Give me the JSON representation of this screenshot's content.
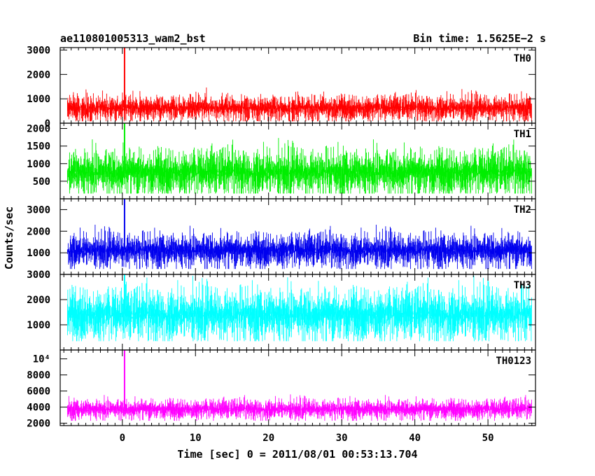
{
  "title_left": "ae110801005313_wam2_bst",
  "title_right": "Bin time: 1.5625E−2 s",
  "xlabel": "Time [sec] 0 = 2011/08/01 00:53:13.704",
  "ylabel": "Counts/sec",
  "chart_data": {
    "type": "line",
    "xlim": [
      -8.5,
      56.5
    ],
    "x_ticks": [
      0,
      10,
      20,
      30,
      40,
      50
    ],
    "x_start": -7.5,
    "x_end": 56.0,
    "bin_time": 0.015625,
    "series": [
      {
        "name": "TH0",
        "color": "#ff0000",
        "ylim": [
          0,
          3100
        ],
        "y_ticks": [
          0,
          1000,
          2000,
          3000
        ],
        "baseline": 650,
        "noise": 260,
        "spike_x": 0.3,
        "spike_y": 3100,
        "lower_floor": 80
      },
      {
        "name": "TH1",
        "color": "#00ee00",
        "ylim": [
          0,
          2150
        ],
        "y_ticks": [
          500,
          1000,
          1500,
          2000
        ],
        "baseline": 780,
        "noise": 330,
        "spike_x": 0.3,
        "spike_y": 2150,
        "lower_floor": 150
      },
      {
        "name": "TH2",
        "color": "#0000ee",
        "ylim": [
          0,
          3500
        ],
        "y_ticks": [
          1000,
          2000,
          3000
        ],
        "baseline": 1150,
        "noise": 400,
        "spike_x": 0.3,
        "spike_y": 3500,
        "lower_floor": 250
      },
      {
        "name": "TH3",
        "color": "#00ffff",
        "ylim": [
          0,
          3000
        ],
        "y_ticks": [
          1000,
          2000,
          3000
        ],
        "baseline": 1450,
        "noise": 520,
        "spike_x": 0.3,
        "spike_y": 3000,
        "lower_floor": 350
      },
      {
        "name": "TH0123",
        "color": "#ff00ff",
        "ylim": [
          1700,
          11100
        ],
        "y_ticks": [
          2000,
          4000,
          6000,
          8000
        ],
        "y_top_label": "10⁴",
        "baseline": 3800,
        "noise": 620,
        "spike_x": 0.3,
        "spike_y": 11100,
        "lower_floor": 2300
      }
    ]
  }
}
